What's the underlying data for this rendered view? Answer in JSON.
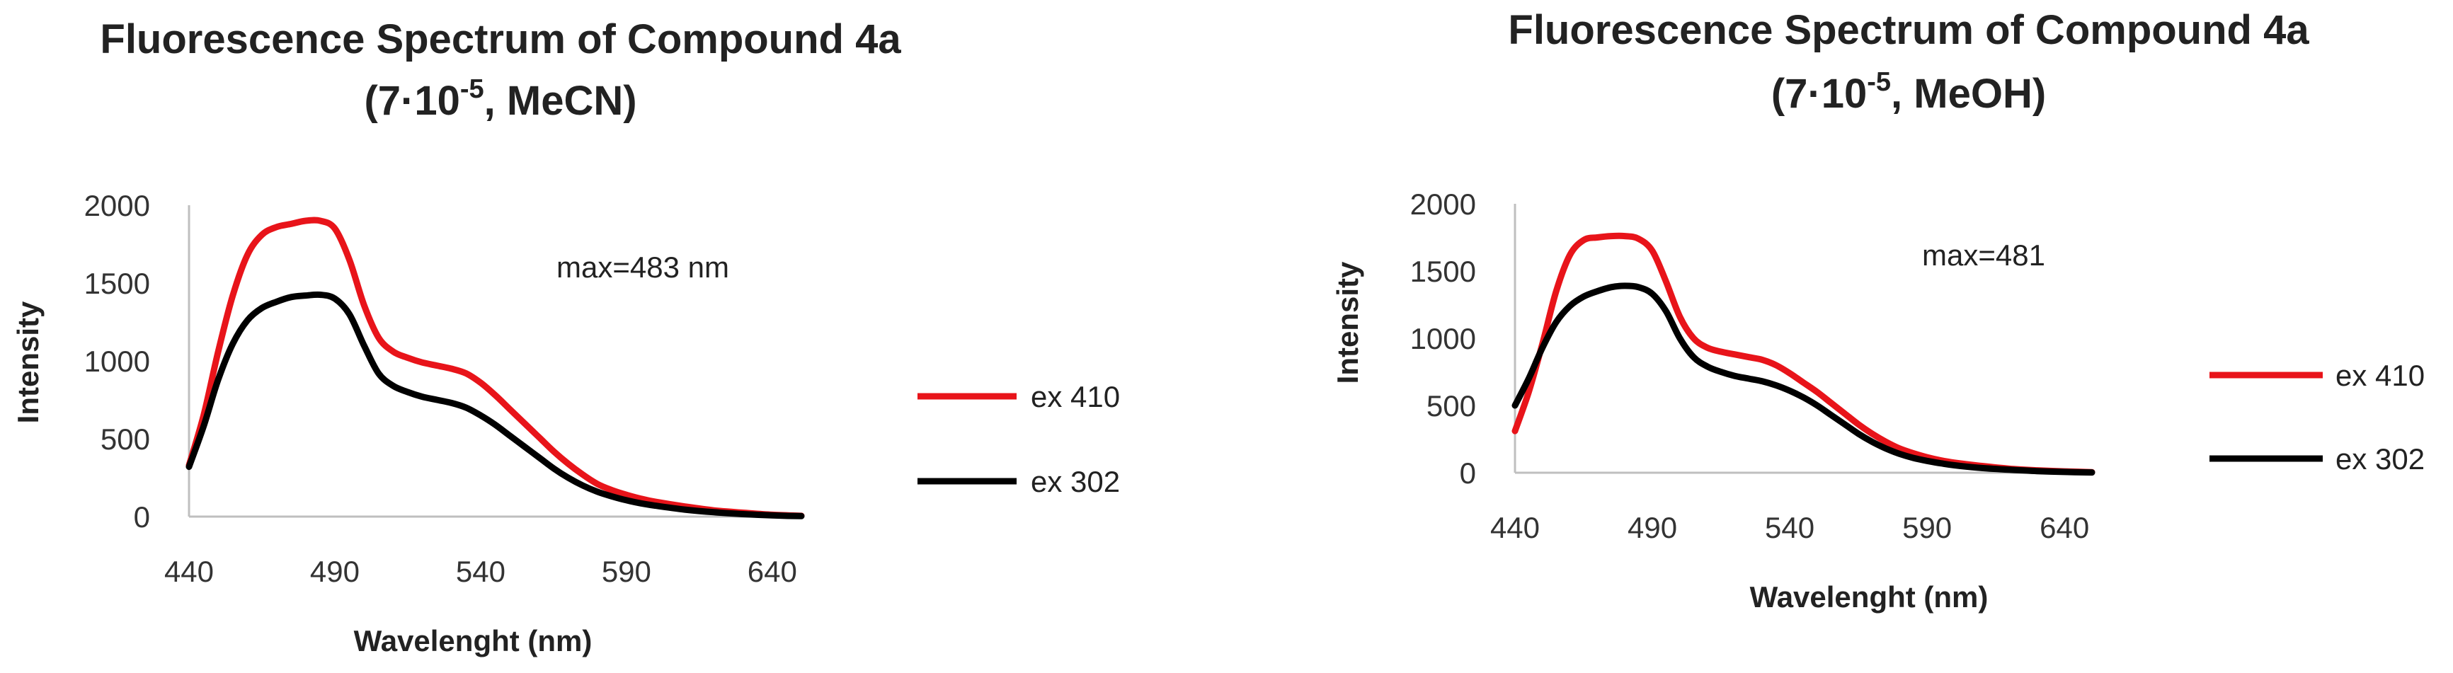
{
  "chart_data": [
    {
      "type": "line",
      "title_main": "Fluorescence Spectrum of Compound 4a",
      "title_pre": "(7·10",
      "title_sup": "-5",
      "title_post": ", MeCN)",
      "xlabel": "Wavelenght (nm)",
      "ylabel": "Intensity",
      "annotation": "max=483 nm",
      "xlim": [
        440,
        650
      ],
      "ylim": [
        0,
        2000
      ],
      "xticks": [
        440,
        490,
        540,
        590,
        640
      ],
      "yticks": [
        0,
        500,
        1000,
        1500,
        2000
      ],
      "series": [
        {
          "name": "ex 410",
          "color": "#e8141a",
          "x": [
            440,
            445,
            450,
            455,
            460,
            465,
            470,
            475,
            480,
            485,
            490,
            495,
            500,
            505,
            510,
            515,
            520,
            525,
            530,
            535,
            540,
            545,
            550,
            555,
            560,
            565,
            570,
            575,
            580,
            585,
            590,
            595,
            600,
            610,
            620,
            630,
            640,
            650
          ],
          "y": [
            330,
            650,
            1060,
            1420,
            1680,
            1810,
            1860,
            1880,
            1900,
            1900,
            1850,
            1650,
            1360,
            1150,
            1060,
            1020,
            990,
            970,
            950,
            920,
            860,
            780,
            690,
            600,
            510,
            420,
            340,
            270,
            210,
            170,
            140,
            115,
            95,
            65,
            40,
            25,
            12,
            5
          ]
        },
        {
          "name": "ex 302",
          "color": "#000000",
          "x": [
            440,
            445,
            450,
            455,
            460,
            465,
            470,
            475,
            480,
            485,
            490,
            495,
            500,
            505,
            510,
            515,
            520,
            525,
            530,
            535,
            540,
            545,
            550,
            555,
            560,
            565,
            570,
            575,
            580,
            585,
            590,
            595,
            600,
            610,
            620,
            630,
            640,
            650
          ],
          "y": [
            320,
            580,
            880,
            1110,
            1260,
            1340,
            1380,
            1410,
            1420,
            1425,
            1400,
            1300,
            1100,
            920,
            840,
            800,
            770,
            750,
            730,
            700,
            650,
            590,
            520,
            450,
            380,
            310,
            250,
            200,
            160,
            130,
            105,
            85,
            70,
            45,
            28,
            16,
            8,
            3
          ]
        }
      ]
    },
    {
      "type": "line",
      "title_main": "Fluorescence Spectrum of Compound 4a",
      "title_pre": "(7·10",
      "title_sup": "-5",
      "title_post": ", MeOH)",
      "xlabel": "Wavelenght (nm)",
      "ylabel": "Intensity",
      "annotation": "max=481",
      "xlim": [
        440,
        650
      ],
      "ylim": [
        0,
        2000
      ],
      "xticks": [
        440,
        490,
        540,
        590,
        640
      ],
      "yticks": [
        0,
        500,
        1000,
        1500,
        2000
      ],
      "series": [
        {
          "name": "ex 410",
          "color": "#e8141a",
          "x": [
            440,
            445,
            450,
            455,
            460,
            465,
            470,
            475,
            480,
            485,
            490,
            495,
            500,
            505,
            510,
            515,
            520,
            525,
            530,
            535,
            540,
            545,
            550,
            555,
            560,
            565,
            570,
            575,
            580,
            585,
            590,
            595,
            600,
            610,
            620,
            630,
            640,
            650
          ],
          "y": [
            310,
            600,
            960,
            1350,
            1620,
            1730,
            1750,
            1760,
            1760,
            1740,
            1650,
            1420,
            1160,
            1000,
            930,
            900,
            880,
            860,
            840,
            800,
            740,
            670,
            600,
            520,
            440,
            360,
            290,
            230,
            180,
            145,
            115,
            92,
            75,
            50,
            30,
            18,
            10,
            4
          ]
        },
        {
          "name": "ex 302",
          "color": "#000000",
          "x": [
            440,
            445,
            450,
            455,
            460,
            465,
            470,
            475,
            480,
            485,
            490,
            495,
            500,
            505,
            510,
            515,
            520,
            525,
            530,
            535,
            540,
            545,
            550,
            555,
            560,
            565,
            570,
            575,
            580,
            585,
            590,
            595,
            600,
            610,
            620,
            630,
            640,
            650
          ],
          "y": [
            500,
            700,
            930,
            1120,
            1240,
            1310,
            1350,
            1380,
            1390,
            1380,
            1330,
            1200,
            1000,
            860,
            790,
            750,
            720,
            700,
            680,
            650,
            610,
            560,
            500,
            430,
            360,
            290,
            230,
            180,
            140,
            110,
            88,
            70,
            55,
            35,
            22,
            12,
            6,
            2
          ]
        }
      ]
    }
  ]
}
